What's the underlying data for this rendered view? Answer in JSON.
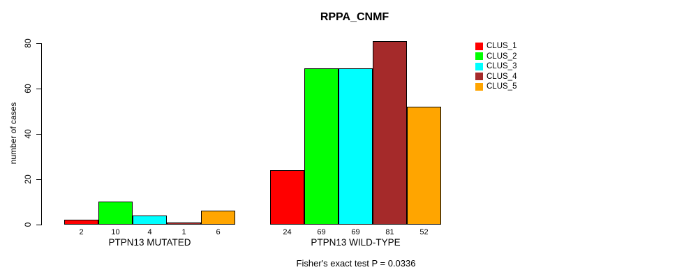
{
  "title": "RPPA_CNMF",
  "caption": "Fisher's exact test P = 0.0336",
  "ylabel": "number of cases",
  "legend": {
    "items": [
      {
        "label": "CLUS_1",
        "color": "#FF0000"
      },
      {
        "label": "CLUS_2",
        "color": "#00FF00"
      },
      {
        "label": "CLUS_3",
        "color": "#00FFFF"
      },
      {
        "label": "CLUS_4",
        "color": "#A52A2A"
      },
      {
        "label": "CLUS_5",
        "color": "#FFA500"
      }
    ]
  },
  "chart_data": {
    "type": "bar",
    "title": "RPPA_CNMF",
    "xlabel": "",
    "ylabel": "number of cases",
    "ylim": [
      0,
      80
    ],
    "yticks": [
      0,
      20,
      40,
      60,
      80
    ],
    "grid": false,
    "legend_position": "right",
    "categories": [
      "PTPN13 MUTATED",
      "PTPN13 WILD-TYPE"
    ],
    "series": [
      {
        "name": "CLUS_1",
        "color": "#FF0000",
        "values": [
          2,
          24
        ]
      },
      {
        "name": "CLUS_2",
        "color": "#00FF00",
        "values": [
          10,
          69
        ]
      },
      {
        "name": "CLUS_3",
        "color": "#00FFFF",
        "values": [
          4,
          69
        ]
      },
      {
        "name": "CLUS_4",
        "color": "#A52A2A",
        "values": [
          1,
          81
        ]
      },
      {
        "name": "CLUS_5",
        "color": "#FFA500",
        "values": [
          6,
          52
        ]
      }
    ],
    "bar_value_labels_shown": true,
    "annotation": "Fisher's exact test P = 0.0336"
  }
}
